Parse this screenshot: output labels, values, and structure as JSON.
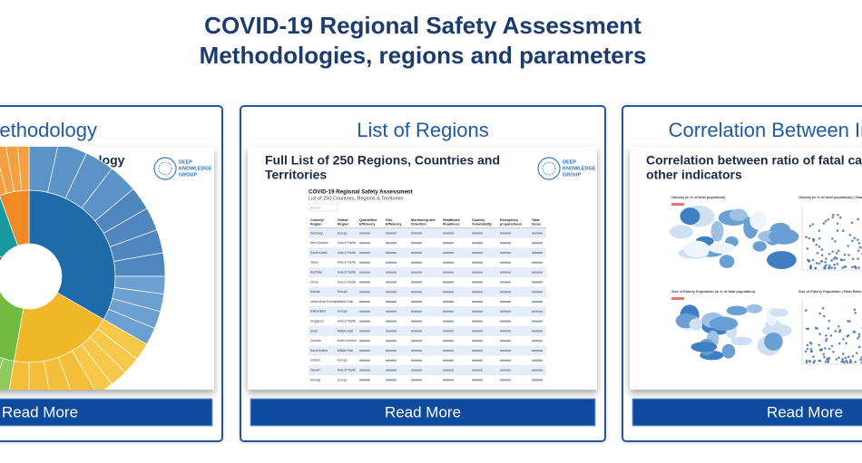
{
  "header": {
    "title_line1": "COVID-19 Regional Safety Assessment",
    "title_line2": "Methodologies, regions and parameters"
  },
  "cards": [
    {
      "heading": "Methodology",
      "subheading_lines": [
        "Framework and Methodology"
      ],
      "logo": [
        "DEEP",
        "KNOWLEDGE",
        "GROUP"
      ],
      "button": "Read More"
    },
    {
      "heading": "List of Regions",
      "subheading_lines": [
        "Full List of 250 Regions, Countries and",
        "Territories"
      ],
      "logo": [
        "DEEP",
        "KNOWLEDGE",
        "GROUP"
      ],
      "button": "Read More",
      "table": {
        "title": "COVID-19 Regional Safety Assessment",
        "subtitle": "List of 250 Countries, Regions & Territories",
        "search": "Search",
        "headers": [
          [
            "Country/",
            "Region"
          ],
          [
            "Global",
            "Region"
          ],
          [
            "Quarantine",
            "Efficiency"
          ],
          [
            "Gov.",
            "Efficiency"
          ],
          [
            "Monitoring and",
            "Detection"
          ],
          [
            "Healthcare",
            "Readiness"
          ],
          [
            "Country",
            "Vulnerability"
          ],
          [
            "Emergency",
            "preparedness"
          ],
          [
            "Total",
            "Score"
          ]
        ],
        "rows": [
          [
            "Germany",
            "Europe"
          ],
          [
            "New Zealand",
            "Asia & Pacific"
          ],
          [
            "South Korea",
            "Asia & Pacific"
          ],
          [
            "Japan",
            "Asia & Pacific"
          ],
          [
            "Australia",
            "Asia & Pacific"
          ],
          [
            "China",
            "Asia & Pacific"
          ],
          [
            "Austria",
            "Europe"
          ],
          [
            "United Arab Emirates",
            "Middle East"
          ],
          [
            "Switzerland",
            "Europe"
          ],
          [
            "Singapore",
            "Asia & Pacific"
          ],
          [
            "Israel",
            "Middle East"
          ],
          [
            "Canada",
            "North America"
          ],
          [
            "Saudi Arabia",
            "Middle East"
          ],
          [
            "Iceland",
            "Europe"
          ],
          [
            "Taiwan*",
            "Asia & Pacific"
          ],
          [
            "Norway",
            "Europe"
          ]
        ]
      }
    },
    {
      "heading": "Correlation Between Indicators",
      "subheading_lines": [
        "Correlation between ratio of fatal cases and",
        "other indicators"
      ],
      "button": "Read More",
      "panels": [
        "Obesity (in % of total population)",
        "Obesity (in % of total population) | Fatal Ratio",
        "Size of Elderly Population (in % of total population)",
        "Size of Elderly Population | Fatal Ratio"
      ]
    }
  ]
}
